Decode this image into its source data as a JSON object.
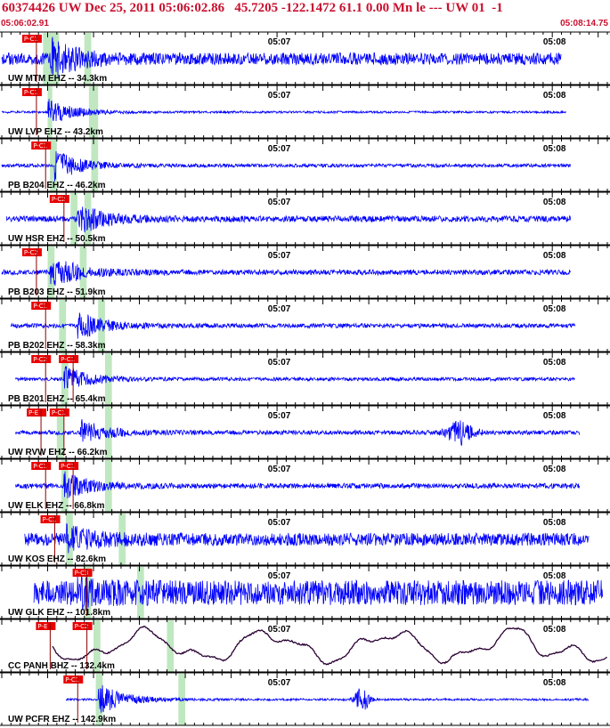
{
  "header": {
    "title": "60374426 UW Dec 25, 2011 05:06:02.86   45.7205 -122.1472 61.1 0.00 Mn le --- UW 01  -1",
    "start_time": "05:06:02.91",
    "end_time": "05:08:14.75"
  },
  "colors": {
    "trace": "#0000ff",
    "trace_bb": "#2a0033",
    "pick": "#e80000",
    "window": "#bfe8c0",
    "axis": "#000000",
    "header": "#c8102e"
  },
  "chart_data": {
    "type": "line",
    "xlim": [
      0,
      132
    ],
    "time_labels": [
      {
        "t": 58,
        "label": "05:07"
      },
      {
        "t": 118,
        "label": "05:08"
      }
    ],
    "traces": [
      {
        "label": "UW MTM EHZ -- 34.3km",
        "start": 0,
        "end": 122,
        "onset": 10.5,
        "noise": 0.28,
        "amp": 0.85,
        "seed": 1,
        "window": [
          9,
          12.5
        ],
        "window2": [
          18,
          19.5
        ],
        "picks": [
          {
            "text": "P-C1",
            "t": 6
          }
        ]
      },
      {
        "label": "UW LVP EHZ -- 43.2km",
        "start": 0,
        "end": 123,
        "onset": 10.0,
        "noise": 0.05,
        "amp": 0.6,
        "seed": 2,
        "window": [
          10,
          11
        ],
        "window2": [
          19,
          21
        ],
        "picks": [
          {
            "text": "P-C1",
            "t": 6
          }
        ]
      },
      {
        "label": "PB B204 EHZ -- 46.2km",
        "start": 0,
        "end": 124,
        "onset": 11.5,
        "noise": 0.08,
        "amp": 0.7,
        "seed": 3,
        "window": [
          10.5,
          12
        ],
        "window2": [
          19.5,
          21
        ],
        "picks": [
          {
            "text": "P-C1",
            "t": 8
          }
        ]
      },
      {
        "label": "UW HSR EHZ -- 50.5km",
        "start": 1,
        "end": 124,
        "onset": 16.5,
        "noise": 0.14,
        "amp": 0.75,
        "seed": 4,
        "window": [
          15,
          16.5
        ],
        "window2": [
          18,
          19.5
        ],
        "picks": [
          {
            "text": "P-C2",
            "t": 12
          }
        ]
      },
      {
        "label": "PB B203 EHZ -- 51.9km",
        "start": 0,
        "end": 124,
        "onset": 10.5,
        "noise": 0.12,
        "amp": 0.85,
        "seed": 5,
        "window": [
          10,
          11.5
        ],
        "window2": [
          17,
          18.5
        ],
        "picks": [
          {
            "text": "P-C2",
            "t": 6
          }
        ]
      },
      {
        "label": "PB B202 EHZ -- 58.3km",
        "start": 2,
        "end": 125,
        "onset": 16.5,
        "noise": 0.1,
        "amp": 0.65,
        "seed": 6,
        "window": [
          12.5,
          14
        ],
        "window2": [
          21,
          22.5
        ],
        "picks": [
          {
            "text": "P-C1",
            "t": 8
          }
        ]
      },
      {
        "label": "PB B201 EHZ -- 65.4km",
        "start": 3,
        "end": 125,
        "onset": 13.5,
        "noise": 0.08,
        "amp": 0.6,
        "seed": 7,
        "window": [
          13,
          14.5
        ],
        "window2": [
          22.5,
          24
        ],
        "picks": [
          {
            "text": "P-C2",
            "t": 8
          },
          {
            "text": "P-C1",
            "t": 14
          }
        ]
      },
      {
        "label": "UW RVW EHZ -- 66.2km",
        "start": 3,
        "end": 126,
        "onset": 17,
        "noise": 0.1,
        "amp": 0.6,
        "seed": 8,
        "window": [
          12,
          13.5
        ],
        "window2": [
          22.5,
          24
        ],
        "burst": {
          "t": 100,
          "amp": 0.5,
          "width": 4
        },
        "picks": [
          {
            "text": "P-E",
            "t": 7
          },
          {
            "text": "P-C1",
            "t": 12
          }
        ]
      },
      {
        "label": "UW ELK EHZ -- 66.8km",
        "start": 3,
        "end": 126,
        "onset": 13.5,
        "noise": 0.12,
        "amp": 0.6,
        "seed": 9,
        "window": [
          13,
          14.5
        ],
        "window2": [
          22.5,
          24
        ],
        "picks": [
          {
            "text": "P-C1",
            "t": 8
          },
          {
            "text": "P-C1",
            "t": 14
          }
        ]
      },
      {
        "label": "UW KOS EHZ -- 82.6km",
        "start": 5,
        "end": 128,
        "onset": 14.0,
        "noise": 0.3,
        "amp": 0.5,
        "seed": 10,
        "window": [
          14,
          15.5
        ],
        "window2": [
          25.5,
          27
        ],
        "picks": [
          {
            "text": "P-C1",
            "t": 10
          }
        ]
      },
      {
        "label": "UW GLK EHZ -- 101.8km",
        "start": 7,
        "end": 131,
        "onset": 16.5,
        "noise": 0.58,
        "amp": 0.35,
        "seed": 11,
        "window": [
          18,
          19.5
        ],
        "window2": [
          29.5,
          31
        ],
        "picks": [
          {
            "text": "P-C3",
            "t": 17
          }
        ]
      },
      {
        "label": "CC PANH BHZ -- 132.4km",
        "start": 11,
        "end": 132,
        "onset": 20.5,
        "noise": 0.0,
        "amp": 0.0,
        "seed": 12,
        "broadband": true,
        "window": [
          20,
          21.5
        ],
        "window2": [
          36,
          37.5
        ],
        "picks": [
          {
            "text": "P-E",
            "t": 9
          },
          {
            "text": "P-C2",
            "t": 17
          }
        ]
      },
      {
        "label": "UW PCFR EHZ -- 142.9km",
        "start": 14,
        "end": 128,
        "onset": 21.0,
        "noise": 0.05,
        "amp": 0.75,
        "seed": 13,
        "window": [
          20.5,
          22
        ],
        "window2": [
          38.5,
          40
        ],
        "burst": {
          "t": 78.5,
          "amp": 0.6,
          "width": 2
        },
        "picks": [
          {
            "text": "P-C1",
            "t": 15
          }
        ]
      }
    ]
  }
}
